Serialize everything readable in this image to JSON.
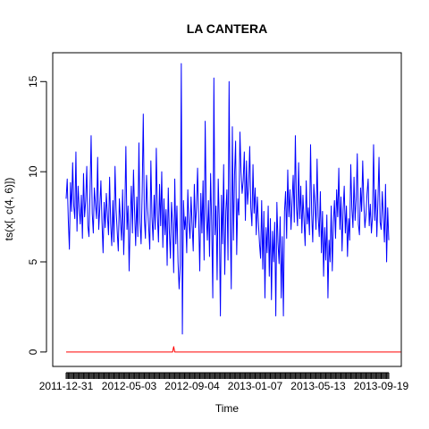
{
  "chart_data": {
    "type": "line",
    "title": "LA CANTERA",
    "xlabel": "Time",
    "ylabel": "ts(x[, c(4, 6)])",
    "ylim": [
      -0.8,
      16.6
    ],
    "y_ticks": [
      0,
      5,
      10,
      15
    ],
    "x_tick_labels": [
      {
        "label": "2011-12-31",
        "x": 1
      },
      {
        "label": "2012-05-03",
        "x": 59
      },
      {
        "label": "2012-09-04",
        "x": 117
      },
      {
        "label": "2013-01-07",
        "x": 175
      },
      {
        "label": "2013-05-13",
        "x": 233
      },
      {
        "label": "2013-09-19",
        "x": 291
      }
    ],
    "grid": false,
    "series": [
      {
        "color": "#0000ff",
        "values": [
          8.5,
          9.6,
          7.3,
          5.7,
          9.4,
          7.8,
          10.5,
          8.1,
          7.4,
          11.1,
          6.7,
          9.2,
          8.0,
          7.1,
          8.7,
          6.3,
          9.9,
          7.5,
          8.4,
          10.3,
          7.0,
          6.4,
          8.9,
          12.0,
          7.7,
          6.6,
          9.1,
          8.2,
          7.4,
          10.8,
          6.8,
          8.0,
          9.5,
          7.2,
          5.5,
          8.3,
          6.9,
          8.8,
          7.6,
          6.5,
          9.7,
          7.1,
          5.9,
          8.4,
          6.1,
          10.3,
          7.9,
          6.7,
          5.6,
          8.5,
          7.3,
          6.2,
          9.0,
          5.4,
          7.7,
          11.4,
          6.8,
          8.1,
          4.5,
          7.3,
          9.2,
          6.6,
          10.1,
          7.8,
          5.9,
          8.6,
          6.4,
          11.6,
          7.2,
          6.0,
          8.9,
          13.2,
          7.4,
          6.3,
          9.8,
          8.0,
          6.9,
          5.7,
          10.6,
          7.5,
          6.2,
          8.7,
          6.8,
          11.3,
          7.6,
          6.1,
          9.3,
          7.0,
          10.0,
          5.8,
          8.5,
          6.5,
          7.9,
          4.8,
          9.1,
          6.7,
          5.2,
          8.3,
          7.1,
          4.4,
          9.6,
          6.0,
          8.1,
          5.0,
          3.5,
          4.8,
          16.0,
          1.0,
          8.4,
          6.8,
          7.5,
          5.5,
          9.0,
          7.2,
          6.3,
          8.6,
          7.0,
          5.6,
          9.3,
          6.9,
          8.0,
          10.2,
          7.4,
          4.5,
          8.8,
          6.6,
          9.5,
          5.1,
          12.8,
          7.7,
          6.2,
          8.4,
          5.3,
          9.9,
          7.0,
          3.0,
          15.2,
          6.5,
          8.1,
          4.0,
          9.6,
          7.3,
          2.0,
          8.7,
          6.0,
          10.4,
          4.3,
          7.8,
          9.0,
          5.1,
          15.0,
          7.4,
          3.5,
          12.5,
          6.2,
          9.8,
          11.7,
          5.4,
          8.5,
          7.6,
          12.2,
          10.0,
          8.8,
          9.5,
          11.1,
          7.3,
          10.6,
          8.2,
          9.2,
          11.4,
          8.0,
          7.0,
          10.4,
          7.7,
          9.1,
          6.5,
          8.6,
          7.2,
          6.0,
          5.2,
          8.4,
          4.6,
          7.8,
          3.0,
          6.9,
          5.5,
          8.1,
          4.2,
          7.4,
          2.9,
          6.7,
          5.0,
          7.2,
          2.0,
          8.3,
          6.1,
          4.9,
          7.5,
          3.0,
          6.4,
          2.0,
          7.8,
          8.9,
          6.3,
          10.1,
          7.5,
          9.0,
          6.8,
          8.4,
          9.8,
          7.2,
          12.0,
          8.1,
          7.0,
          10.5,
          7.4,
          9.2,
          6.6,
          8.7,
          7.3,
          5.9,
          9.5,
          7.1,
          8.0,
          6.5,
          11.5,
          7.7,
          6.1,
          9.3,
          8.2,
          6.8,
          10.7,
          7.5,
          6.4,
          8.9,
          5.5,
          7.8,
          4.2,
          6.9,
          5.1,
          7.6,
          3.0,
          6.2,
          5.0,
          8.1,
          4.5,
          7.2,
          8.4,
          6.3,
          9.0,
          7.5,
          10.2,
          6.8,
          8.6,
          5.6,
          7.9,
          9.2,
          6.6,
          8.1,
          5.3,
          7.4,
          6.2,
          10.4,
          8.0,
          6.9,
          9.7,
          7.3,
          8.5,
          11.0,
          7.1,
          6.5,
          9.1,
          7.8,
          10.6,
          8.3,
          6.9,
          7.6,
          8.8,
          9.6,
          7.0,
          8.2,
          6.6,
          7.5,
          11.5,
          7.3,
          9.0,
          6.4,
          8.4,
          10.8,
          7.2,
          6.8,
          8.9,
          7.5,
          6.1,
          9.3,
          5.0,
          8.0,
          6.2
        ]
      },
      {
        "color": "#ff0000",
        "values": [
          0,
          0,
          0,
          0,
          0,
          0,
          0,
          0,
          0,
          0,
          0,
          0,
          0,
          0,
          0,
          0,
          0,
          0,
          0,
          0,
          0,
          0,
          0,
          0,
          0,
          0,
          0,
          0,
          0,
          0,
          0,
          0,
          0,
          0,
          0,
          0,
          0,
          0,
          0,
          0,
          0,
          0,
          0,
          0,
          0,
          0,
          0,
          0,
          0,
          0,
          0,
          0,
          0,
          0,
          0,
          0,
          0,
          0,
          0,
          0,
          0,
          0,
          0,
          0,
          0,
          0,
          0,
          0,
          0,
          0,
          0,
          0,
          0,
          0,
          0,
          0,
          0,
          0,
          0,
          0,
          0,
          0,
          0,
          0,
          0,
          0,
          0,
          0,
          0,
          0,
          0,
          0,
          0,
          0,
          0,
          0,
          0,
          0,
          0,
          0.3,
          0,
          0,
          0,
          0,
          0,
          0,
          0,
          0,
          0,
          0,
          0,
          0,
          0,
          0,
          0,
          0,
          0,
          0,
          0,
          0,
          0,
          0,
          0,
          0,
          0,
          0,
          0,
          0,
          0,
          0,
          0,
          0,
          0,
          0,
          0,
          0,
          0,
          0,
          0,
          0,
          0,
          0,
          0,
          0,
          0,
          0,
          0,
          0,
          0,
          0,
          0,
          0,
          0,
          0,
          0,
          0,
          0,
          0,
          0,
          0,
          0,
          0,
          0,
          0,
          0,
          0,
          0,
          0,
          0,
          0,
          0,
          0,
          0,
          0,
          0,
          0,
          0,
          0,
          0,
          0,
          0,
          0,
          0,
          0,
          0,
          0,
          0,
          0,
          0,
          0,
          0,
          0,
          0,
          0,
          0,
          0,
          0,
          0,
          0,
          0,
          0,
          0,
          0,
          0,
          0,
          0,
          0,
          0,
          0,
          0,
          0,
          0,
          0,
          0,
          0,
          0,
          0,
          0,
          0,
          0,
          0,
          0,
          0,
          0,
          0,
          0,
          0,
          0,
          0,
          0,
          0,
          0,
          0,
          0,
          0,
          0,
          0,
          0,
          0,
          0,
          0,
          0,
          0,
          0,
          0,
          0,
          0,
          0,
          0,
          0,
          0,
          0,
          0,
          0,
          0,
          0,
          0,
          0,
          0,
          0,
          0,
          0,
          0,
          0,
          0,
          0,
          0,
          0,
          0,
          0,
          0,
          0,
          0,
          0,
          0,
          0,
          0,
          0,
          0,
          0,
          0,
          0,
          0,
          0,
          0,
          0,
          0,
          0,
          0,
          0,
          0,
          0,
          0,
          0,
          0,
          0,
          0,
          0,
          0,
          0,
          0,
          0,
          0,
          0,
          0,
          0,
          0,
          0,
          0
        ]
      }
    ]
  }
}
